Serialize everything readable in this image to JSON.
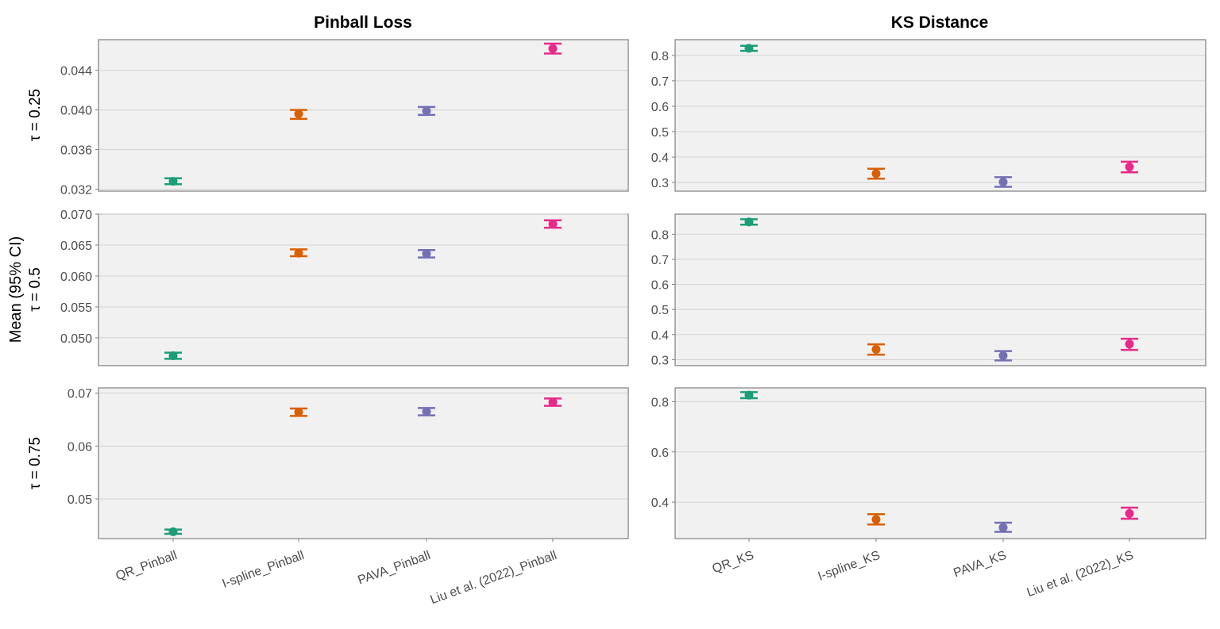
{
  "chart_data": {
    "type": "errorbar",
    "y_axis_title": "Mean (95% CI)",
    "column_titles": [
      "Pinball Loss",
      "KS Distance"
    ],
    "row_labels": [
      "τ = 0.25",
      "τ = 0.5",
      "τ = 0.75"
    ],
    "x_categories": {
      "pinball": [
        "QR_Pinball",
        "I-spline_Pinball",
        "PAVA_Pinball",
        "Liu et al. (2022)_Pinball"
      ],
      "ks": [
        "QR_KS",
        "I-spline_KS",
        "PAVA_KS",
        "Liu et al. (2022)_KS"
      ]
    },
    "colors": [
      "#1b9e77",
      "#d95f02",
      "#7570b3",
      "#e7298a"
    ],
    "panels": [
      {
        "row": 0,
        "col": 0,
        "ylim": [
          0.0318,
          0.0471
        ],
        "yticks": [
          0.032,
          0.036,
          0.04,
          0.044
        ],
        "tick_labels": [
          "0.032",
          "0.036",
          "0.040",
          "0.044"
        ],
        "mean": [
          0.0328,
          0.0396,
          0.0399,
          0.0462
        ],
        "lower": [
          0.0325,
          0.0391,
          0.0395,
          0.0457
        ],
        "upper": [
          0.0331,
          0.04,
          0.0403,
          0.0467
        ]
      },
      {
        "row": 0,
        "col": 1,
        "ylim": [
          0.266,
          0.862
        ],
        "yticks": [
          0.3,
          0.4,
          0.5,
          0.6,
          0.7,
          0.8
        ],
        "tick_labels": [
          "0.3",
          "0.4",
          "0.5",
          "0.6",
          "0.7",
          "0.8"
        ],
        "mean": [
          0.828,
          0.335,
          0.302,
          0.361
        ],
        "lower": [
          0.818,
          0.315,
          0.283,
          0.34
        ],
        "upper": [
          0.838,
          0.354,
          0.321,
          0.382
        ]
      },
      {
        "row": 1,
        "col": 0,
        "ylim": [
          0.0455,
          0.07
        ],
        "yticks": [
          0.05,
          0.055,
          0.06,
          0.065,
          0.07
        ],
        "tick_labels": [
          "0.050",
          "0.055",
          "0.060",
          "0.065",
          "0.070"
        ],
        "mean": [
          0.0471,
          0.0637,
          0.0636,
          0.0684
        ],
        "lower": [
          0.0466,
          0.0632,
          0.063,
          0.0678
        ],
        "upper": [
          0.0476,
          0.0643,
          0.0642,
          0.069
        ]
      },
      {
        "row": 1,
        "col": 1,
        "ylim": [
          0.276,
          0.88
        ],
        "yticks": [
          0.3,
          0.4,
          0.5,
          0.6,
          0.7,
          0.8
        ],
        "tick_labels": [
          "0.3",
          "0.4",
          "0.5",
          "0.6",
          "0.7",
          "0.8"
        ],
        "mean": [
          0.849,
          0.341,
          0.316,
          0.362
        ],
        "lower": [
          0.838,
          0.32,
          0.297,
          0.339
        ],
        "upper": [
          0.86,
          0.361,
          0.334,
          0.383
        ]
      },
      {
        "row": 2,
        "col": 0,
        "ylim": [
          0.0425,
          0.071
        ],
        "yticks": [
          0.05,
          0.06,
          0.07
        ],
        "tick_labels": [
          "0.05",
          "0.06",
          "0.07"
        ],
        "mean": [
          0.0438,
          0.0664,
          0.0665,
          0.0683
        ],
        "lower": [
          0.0434,
          0.0657,
          0.0658,
          0.0676
        ],
        "upper": [
          0.0442,
          0.0671,
          0.0672,
          0.069
        ]
      },
      {
        "row": 2,
        "col": 1,
        "ylim": [
          0.255,
          0.855
        ],
        "yticks": [
          0.4,
          0.6,
          0.8
        ],
        "tick_labels": [
          "0.4",
          "0.6",
          "0.8"
        ],
        "mean": [
          0.826,
          0.331,
          0.299,
          0.355
        ],
        "lower": [
          0.814,
          0.311,
          0.282,
          0.334
        ],
        "upper": [
          0.838,
          0.352,
          0.318,
          0.378
        ]
      }
    ]
  }
}
